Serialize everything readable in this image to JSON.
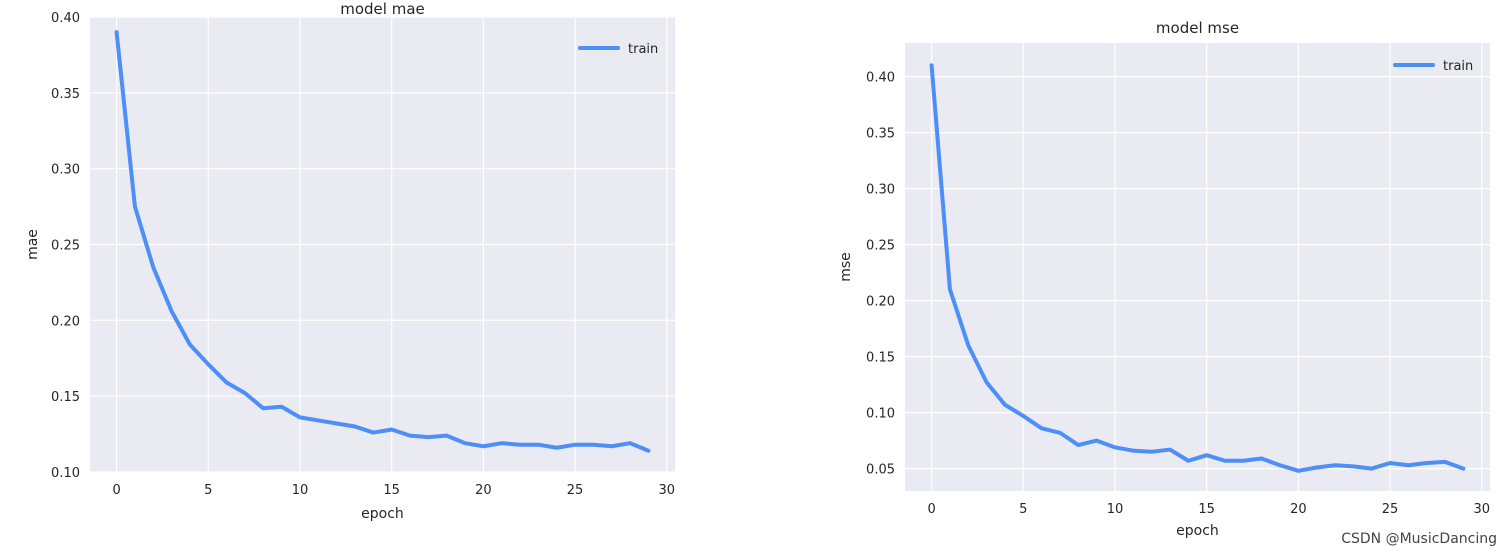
{
  "chart_data": [
    {
      "type": "line",
      "title": "model mae",
      "xlabel": "epoch",
      "ylabel": "mae",
      "xlim": [
        -1.45,
        30.45
      ],
      "ylim": [
        0.1,
        0.4
      ],
      "xticks": [
        0,
        5,
        10,
        15,
        20,
        25,
        30
      ],
      "yticks": [
        0.1,
        0.15,
        0.2,
        0.25,
        0.3,
        0.35,
        0.4
      ],
      "grid": true,
      "legend_loc": "top-right",
      "series": [
        {
          "name": "train",
          "color": "#4C8FF7",
          "x": [
            0,
            1,
            2,
            3,
            4,
            5,
            6,
            7,
            8,
            9,
            10,
            11,
            12,
            13,
            14,
            15,
            16,
            17,
            18,
            19,
            20,
            21,
            22,
            23,
            24,
            25,
            26,
            27,
            28,
            29
          ],
          "values": [
            0.39,
            0.275,
            0.235,
            0.206,
            0.184,
            0.171,
            0.159,
            0.152,
            0.142,
            0.143,
            0.136,
            0.134,
            0.132,
            0.13,
            0.126,
            0.128,
            0.124,
            0.123,
            0.124,
            0.119,
            0.117,
            0.119,
            0.118,
            0.118,
            0.116,
            0.118,
            0.118,
            0.117,
            0.119,
            0.114
          ]
        }
      ]
    },
    {
      "type": "line",
      "title": "model mse",
      "xlabel": "epoch",
      "ylabel": "mse",
      "xlim": [
        -1.45,
        30.45
      ],
      "ylim": [
        0.03,
        0.43
      ],
      "xticks": [
        0,
        5,
        10,
        15,
        20,
        25,
        30
      ],
      "yticks": [
        0.05,
        0.1,
        0.15,
        0.2,
        0.25,
        0.3,
        0.35,
        0.4
      ],
      "grid": true,
      "legend_loc": "top-right",
      "series": [
        {
          "name": "train",
          "color": "#4C8FF7",
          "x": [
            0,
            1,
            2,
            3,
            4,
            5,
            6,
            7,
            8,
            9,
            10,
            11,
            12,
            13,
            14,
            15,
            16,
            17,
            18,
            19,
            20,
            21,
            22,
            23,
            24,
            25,
            26,
            27,
            28,
            29
          ],
          "values": [
            0.41,
            0.21,
            0.16,
            0.127,
            0.107,
            0.097,
            0.086,
            0.082,
            0.071,
            0.075,
            0.069,
            0.066,
            0.065,
            0.067,
            0.057,
            0.062,
            0.057,
            0.057,
            0.059,
            0.053,
            0.048,
            0.051,
            0.053,
            0.052,
            0.05,
            0.055,
            0.053,
            0.055,
            0.056,
            0.05
          ]
        }
      ]
    }
  ],
  "watermark": "CSDN @MusicDancing"
}
